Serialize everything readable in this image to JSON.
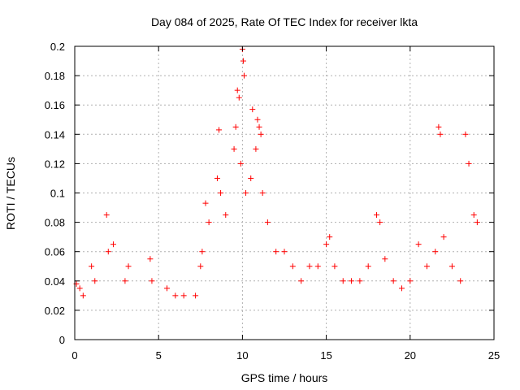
{
  "chart_data": {
    "type": "scatter",
    "title": "Day 084 of 2025, Rate Of TEC Index for receiver lkta",
    "xlabel": "GPS time / hours",
    "ylabel": "ROTI / TECUs",
    "xlim": [
      0,
      25
    ],
    "ylim": [
      0,
      0.2
    ],
    "x_ticks": [
      0,
      5,
      10,
      15,
      20,
      25
    ],
    "y_ticks": [
      0,
      0.02,
      0.04,
      0.06,
      0.08,
      0.1,
      0.12,
      0.14,
      0.16,
      0.18,
      0.2
    ],
    "x_tick_labels": [
      "0",
      "5",
      "10",
      "15",
      "20",
      "25"
    ],
    "y_tick_labels": [
      "0",
      "0.02",
      "0.04",
      "0.06",
      "0.08",
      "0.1",
      "0.12",
      "0.14",
      "0.16",
      "0.18",
      "0.2"
    ],
    "grid": true,
    "marker": "+",
    "color": "#ff0000",
    "series": [
      {
        "x": [
          0.1,
          0.3,
          0.5,
          1.0,
          1.2,
          1.9,
          2.0,
          2.3,
          3.0,
          3.2,
          4.5,
          4.6,
          5.5,
          6.0,
          6.5,
          7.2,
          7.5,
          7.6,
          7.8,
          8.0,
          8.5,
          8.6,
          8.7,
          9.0,
          9.5,
          9.6,
          9.7,
          9.8,
          9.9,
          10.0,
          10.05,
          10.1,
          10.2,
          10.5,
          10.6,
          10.8,
          10.9,
          11.0,
          11.1,
          11.2,
          11.5,
          12.0,
          12.5,
          13.0,
          13.5,
          14.0,
          14.5,
          15.0,
          15.2,
          15.5,
          16.0,
          16.5,
          17.0,
          17.5,
          18.0,
          18.2,
          18.5,
          19.0,
          19.5,
          20.0,
          20.5,
          21.0,
          21.5,
          21.7,
          21.8,
          22.0,
          22.5,
          23.0,
          23.3,
          23.5,
          23.8,
          24.0
        ],
        "y": [
          0.038,
          0.035,
          0.03,
          0.05,
          0.04,
          0.085,
          0.06,
          0.065,
          0.04,
          0.05,
          0.055,
          0.04,
          0.035,
          0.03,
          0.03,
          0.03,
          0.05,
          0.06,
          0.093,
          0.08,
          0.11,
          0.143,
          0.1,
          0.085,
          0.13,
          0.145,
          0.17,
          0.165,
          0.12,
          0.198,
          0.19,
          0.18,
          0.1,
          0.11,
          0.157,
          0.13,
          0.15,
          0.145,
          0.14,
          0.1,
          0.08,
          0.06,
          0.06,
          0.05,
          0.04,
          0.05,
          0.05,
          0.065,
          0.07,
          0.05,
          0.04,
          0.04,
          0.04,
          0.05,
          0.085,
          0.08,
          0.055,
          0.04,
          0.035,
          0.04,
          0.065,
          0.05,
          0.06,
          0.145,
          0.14,
          0.07,
          0.05,
          0.04,
          0.14,
          0.12,
          0.085,
          0.08
        ]
      }
    ]
  }
}
